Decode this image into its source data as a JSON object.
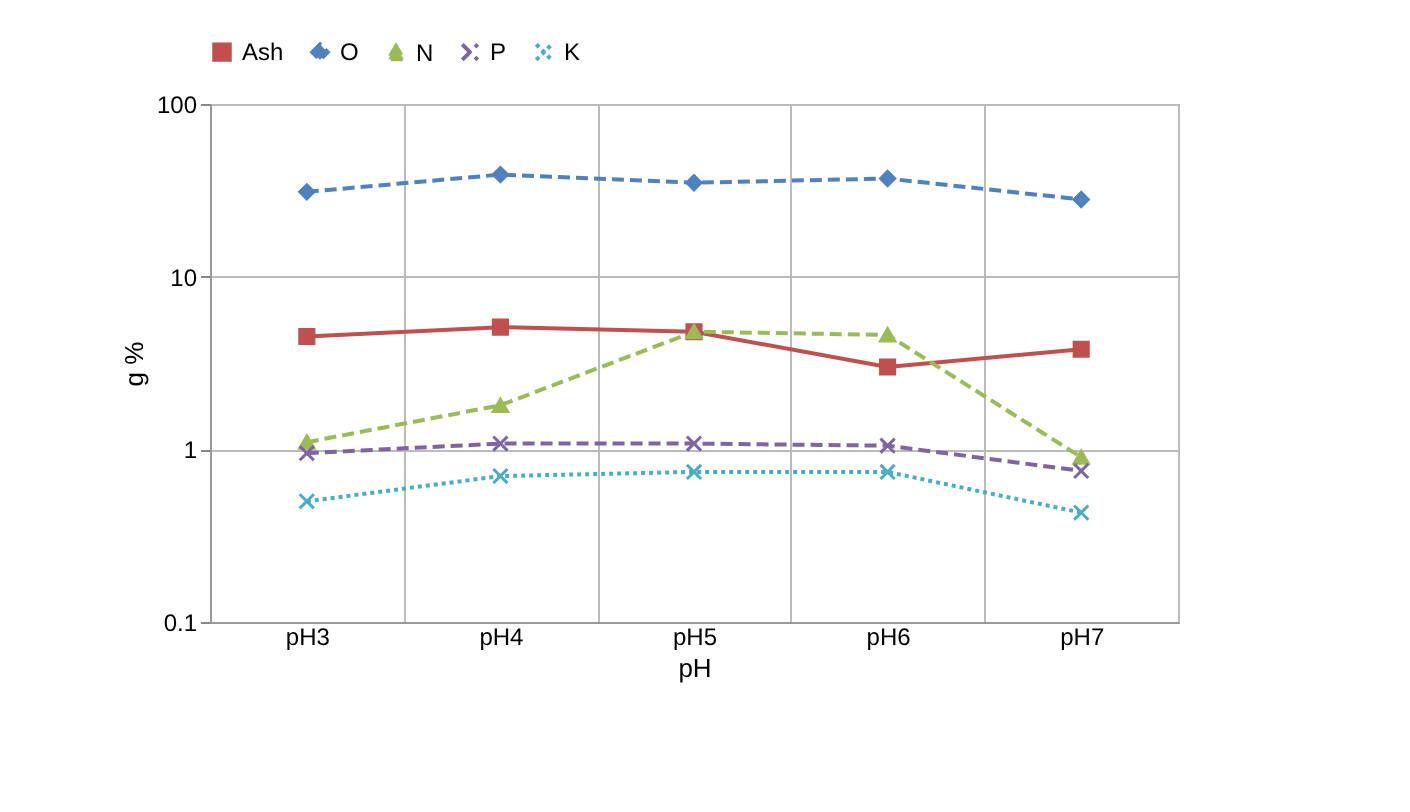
{
  "chart_data": {
    "type": "line",
    "xlabel": "pH",
    "ylabel": "g %",
    "categories": [
      "pH3",
      "pH4",
      "pH5",
      "pH6",
      "pH7"
    ],
    "series": [
      {
        "name": "Ash",
        "color": "#c0504d",
        "marker": "square",
        "line_style": "solid",
        "values": [
          4.5,
          5.1,
          4.8,
          3.0,
          3.8
        ]
      },
      {
        "name": "O",
        "color": "#4f81bd",
        "marker": "diamond",
        "line_style": "dashed",
        "values": [
          31,
          39,
          35,
          37,
          28
        ]
      },
      {
        "name": "N",
        "color": "#9bbb59",
        "marker": "triangle",
        "line_style": "dashed",
        "values": [
          1.1,
          1.8,
          4.8,
          4.6,
          0.9
        ]
      },
      {
        "name": "P",
        "color": "#8064a2",
        "marker": "cross",
        "line_style": "dashed",
        "values": [
          0.95,
          1.08,
          1.08,
          1.05,
          0.75
        ]
      },
      {
        "name": "K",
        "color": "#4bacc6",
        "marker": "cross",
        "line_style": "dotted",
        "values": [
          0.5,
          0.7,
          0.74,
          0.74,
          0.43
        ]
      }
    ],
    "log": true,
    "ylim": [
      0.1,
      100
    ],
    "yticks": [
      0.1,
      1,
      10,
      100
    ],
    "grid": true,
    "legend": "top"
  }
}
